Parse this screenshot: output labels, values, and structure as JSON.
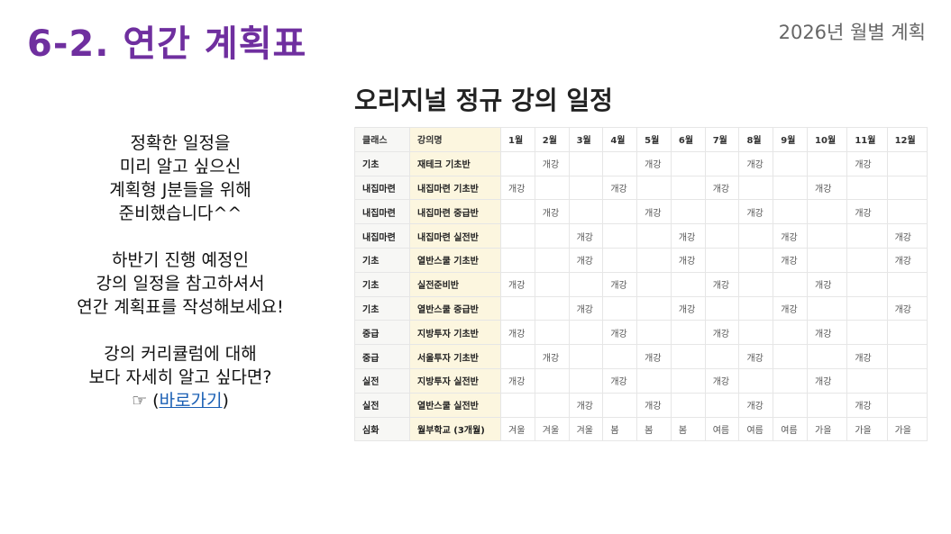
{
  "header": {
    "title": "6-2. 연간 계획표",
    "subtitle": "2026년 월별 계획"
  },
  "intro": {
    "p1": [
      "정확한 일정을",
      "미리 알고 싶으신",
      "계획형 J분들을 위해",
      "준비했습니다^^"
    ],
    "p2": [
      "하반기 진행 예정인",
      "강의 일정을 참고하셔서",
      "연간 계획표를 작성해보세요!"
    ],
    "p3": [
      "강의 커리큘럼에 대해",
      "보다 자세히 알고 싶다면?"
    ],
    "pointer": "☞ (",
    "link": "바로가기",
    "close": ")"
  },
  "schedule": {
    "title": "오리지널 정규 강의 일정",
    "headers": [
      "클래스",
      "강의명",
      "1월",
      "2월",
      "3월",
      "4월",
      "5월",
      "6월",
      "7월",
      "8월",
      "9월",
      "10월",
      "11월",
      "12월"
    ],
    "rows": [
      {
        "cls": "기초",
        "name": "재테크 기초반",
        "months": [
          "",
          "개강",
          "",
          "",
          "개강",
          "",
          "",
          "개강",
          "",
          "",
          "개강",
          ""
        ]
      },
      {
        "cls": "내집마련",
        "name": "내집마련 기초반",
        "months": [
          "개강",
          "",
          "",
          "개강",
          "",
          "",
          "개강",
          "",
          "",
          "개강",
          "",
          ""
        ]
      },
      {
        "cls": "내집마련",
        "name": "내집마련 중급반",
        "months": [
          "",
          "개강",
          "",
          "",
          "개강",
          "",
          "",
          "개강",
          "",
          "",
          "개강",
          ""
        ]
      },
      {
        "cls": "내집마련",
        "name": "내집마련 실전반",
        "months": [
          "",
          "",
          "개강",
          "",
          "",
          "개강",
          "",
          "",
          "개강",
          "",
          "",
          "개강"
        ]
      },
      {
        "cls": "기초",
        "name": "열반스쿨 기초반",
        "months": [
          "",
          "",
          "개강",
          "",
          "",
          "개강",
          "",
          "",
          "개강",
          "",
          "",
          "개강"
        ]
      },
      {
        "cls": "기초",
        "name": "실전준비반",
        "months": [
          "개강",
          "",
          "",
          "개강",
          "",
          "",
          "개강",
          "",
          "",
          "개강",
          "",
          ""
        ]
      },
      {
        "cls": "기초",
        "name": "열반스쿨 중급반",
        "months": [
          "",
          "",
          "개강",
          "",
          "",
          "개강",
          "",
          "",
          "개강",
          "",
          "",
          "개강"
        ]
      },
      {
        "cls": "중급",
        "name": "지방투자 기초반",
        "months": [
          "개강",
          "",
          "",
          "개강",
          "",
          "",
          "개강",
          "",
          "",
          "개강",
          "",
          ""
        ]
      },
      {
        "cls": "중급",
        "name": "서울투자 기초반",
        "months": [
          "",
          "개강",
          "",
          "",
          "개강",
          "",
          "",
          "개강",
          "",
          "",
          "개강",
          ""
        ]
      },
      {
        "cls": "실전",
        "name": "지방투자 실전반",
        "months": [
          "개강",
          "",
          "",
          "개강",
          "",
          "",
          "개강",
          "",
          "",
          "개강",
          "",
          ""
        ]
      },
      {
        "cls": "실전",
        "name": "열반스쿨 실전반",
        "months": [
          "",
          "",
          "개강",
          "",
          "개강",
          "",
          "",
          "개강",
          "",
          "",
          "개강",
          ""
        ]
      },
      {
        "cls": "심화",
        "name": "월부학교 (3개월)",
        "months": [
          "겨울",
          "겨울",
          "겨울",
          "봄",
          "봄",
          "봄",
          "여름",
          "여름",
          "여름",
          "가을",
          "가을",
          "가을"
        ]
      }
    ]
  }
}
